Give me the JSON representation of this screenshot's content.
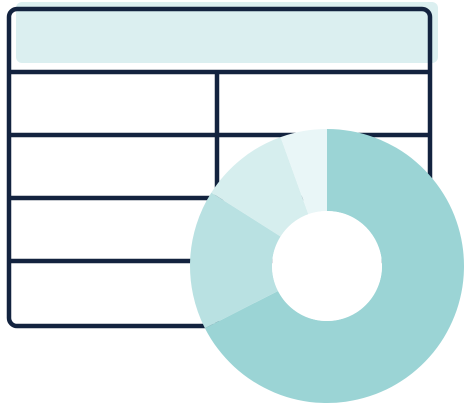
{
  "illustration": {
    "subject": "table-with-donut-chart-icon",
    "colors": {
      "outline": "#13233f",
      "header_fill": "#dbeff0",
      "background": "#ffffff",
      "segment_large": "#9bd4d5",
      "segment_medium": "#b9e1e2",
      "segment_small": "#d6eeee",
      "segment_tiny": "#e9f6f7",
      "hole": "#ffffff"
    }
  },
  "donut": {
    "segment_fractions": [
      0.675,
      0.165,
      0.105,
      0.055
    ]
  }
}
